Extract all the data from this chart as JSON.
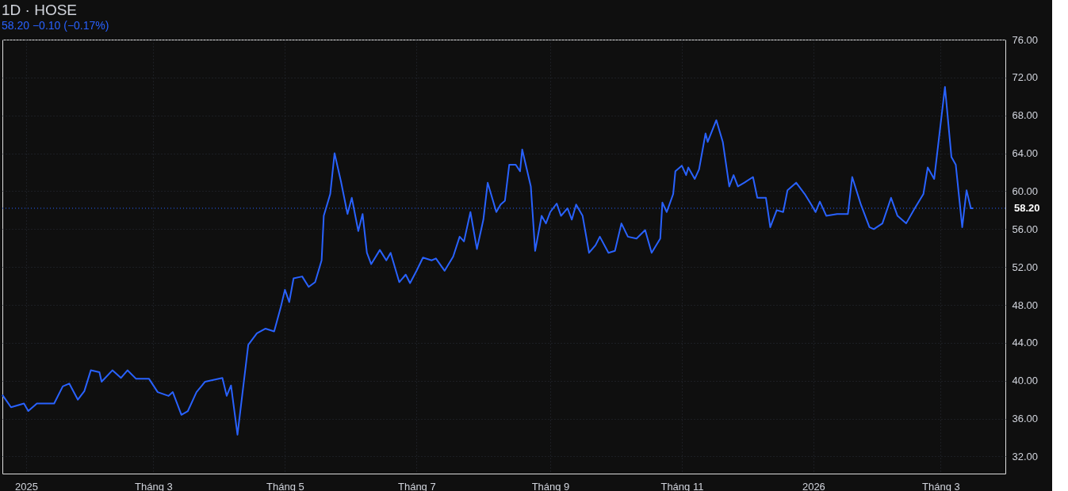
{
  "chart_data": {
    "type": "line",
    "title": "1D · HOSE",
    "subtitle": "58.20 −0.10 (−0.17%)",
    "x": [
      "2024-12-21",
      "2024-12-25",
      "2024-12-31",
      "2025-01-02",
      "2025-01-06",
      "2025-01-14",
      "2025-01-18",
      "2025-01-21",
      "2025-01-25",
      "2025-01-28",
      "2025-01-31",
      "2025-02-04",
      "2025-02-05",
      "2025-02-10",
      "2025-02-14",
      "2025-02-17",
      "2025-02-21",
      "2025-02-27",
      "2025-03-03",
      "2025-03-08",
      "2025-03-10",
      "2025-03-14",
      "2025-03-17",
      "2025-03-21",
      "2025-03-25",
      "2025-04-02",
      "2025-04-04",
      "2025-04-06",
      "2025-04-09",
      "2025-04-14",
      "2025-04-18",
      "2025-04-22",
      "2025-04-26",
      "2025-04-29",
      "2025-05-01",
      "2025-05-03",
      "2025-05-05",
      "2025-05-09",
      "2025-05-12",
      "2025-05-15",
      "2025-05-18",
      "2025-05-19",
      "2025-05-22",
      "2025-05-24",
      "2025-05-27",
      "2025-05-30",
      "2025-06-01",
      "2025-06-04",
      "2025-06-06",
      "2025-06-08",
      "2025-06-10",
      "2025-06-14",
      "2025-06-17",
      "2025-06-19",
      "2025-06-23",
      "2025-06-26",
      "2025-06-28",
      "2025-07-01",
      "2025-07-04",
      "2025-07-08",
      "2025-07-10",
      "2025-07-14",
      "2025-07-18",
      "2025-07-21",
      "2025-07-23",
      "2025-07-26",
      "2025-07-29",
      "2025-08-01",
      "2025-08-03",
      "2025-08-07",
      "2025-08-09",
      "2025-08-11",
      "2025-08-13",
      "2025-08-16",
      "2025-08-18",
      "2025-08-19",
      "2025-08-23",
      "2025-08-25",
      "2025-08-28",
      "2025-08-30",
      "2025-09-01",
      "2025-09-04",
      "2025-09-06",
      "2025-09-09",
      "2025-09-11",
      "2025-09-13",
      "2025-09-16",
      "2025-09-19",
      "2025-09-22",
      "2025-09-24",
      "2025-09-28",
      "2025-10-01",
      "2025-10-04",
      "2025-10-07",
      "2025-10-11",
      "2025-10-15",
      "2025-10-18",
      "2025-10-22",
      "2025-10-23",
      "2025-10-25",
      "2025-10-28",
      "2025-10-29",
      "2025-11-01",
      "2025-11-03",
      "2025-11-04",
      "2025-11-07",
      "2025-11-09",
      "2025-11-12",
      "2025-11-13",
      "2025-11-17",
      "2025-11-20",
      "2025-11-23",
      "2025-11-25",
      "2025-11-27",
      "2025-11-30",
      "2025-12-04",
      "2025-12-06",
      "2025-12-10",
      "2025-12-12",
      "2025-12-15",
      "2025-12-18",
      "2025-12-20",
      "2025-12-24",
      "2025-12-28",
      "2025-12-31",
      "2026-01-02",
      "2026-01-04",
      "2026-01-07",
      "2026-01-12",
      "2026-01-17",
      "2026-01-19",
      "2026-01-23",
      "2026-01-27",
      "2026-01-29",
      "2026-02-02",
      "2026-02-06",
      "2026-02-09",
      "2026-02-13",
      "2026-02-17",
      "2026-02-21",
      "2026-02-23",
      "2026-02-26",
      "2026-03-03",
      "2026-03-06",
      "2026-03-08",
      "2026-03-11",
      "2026-03-13",
      "2026-03-15",
      "2026-03-16"
    ],
    "series": [
      {
        "color": "#2962ff",
        "values": [
          38.5,
          37.2,
          37.6,
          36.8,
          37.6,
          37.6,
          39.4,
          39.7,
          38.0,
          38.9,
          41.1,
          40.9,
          39.9,
          41.1,
          40.3,
          41.1,
          40.2,
          40.2,
          38.8,
          38.4,
          38.8,
          36.4,
          36.8,
          38.8,
          39.9,
          40.3,
          38.4,
          39.5,
          34.3,
          43.8,
          45.0,
          45.5,
          45.2,
          47.7,
          49.6,
          48.3,
          50.8,
          51.0,
          49.9,
          50.4,
          52.7,
          57.4,
          59.7,
          64.0,
          61.0,
          57.6,
          59.3,
          55.8,
          57.6,
          53.5,
          52.3,
          53.8,
          52.7,
          53.5,
          50.4,
          51.2,
          50.3,
          51.6,
          53.0,
          52.7,
          52.9,
          51.6,
          53.1,
          55.2,
          54.7,
          57.8,
          53.9,
          57.0,
          60.9,
          57.8,
          58.6,
          59.0,
          62.8,
          62.8,
          62.1,
          64.4,
          60.5,
          53.7,
          57.4,
          56.6,
          57.8,
          58.7,
          57.4,
          58.2,
          57.0,
          58.6,
          57.4,
          53.5,
          54.3,
          55.2,
          53.5,
          53.7,
          56.6,
          55.2,
          55.0,
          55.9,
          53.5,
          55.0,
          58.8,
          57.8,
          59.7,
          62.1,
          62.7,
          61.7,
          62.5,
          61.3,
          62.3,
          66.1,
          65.2,
          67.5,
          65.2,
          60.5,
          61.7,
          60.5,
          60.9,
          61.5,
          59.3,
          59.3,
          56.2,
          58.0,
          57.8,
          60.1,
          60.9,
          59.7,
          58.6,
          57.8,
          58.9,
          57.4,
          57.6,
          57.6,
          61.5,
          58.6,
          56.2,
          56.0,
          56.6,
          59.3,
          57.4,
          56.6,
          58.2,
          59.7,
          62.5,
          61.3,
          71.0,
          63.6,
          62.8,
          56.2,
          60.1,
          58.2,
          58.2
        ]
      }
    ],
    "xlim": [
      "2024-12-21",
      "2026-03-31"
    ],
    "xticks": [
      {
        "value": "2025-01-01",
        "label": "2025"
      },
      {
        "value": "2025-03-01",
        "label": "Tháng 3"
      },
      {
        "value": "2025-05-01",
        "label": "Tháng 5"
      },
      {
        "value": "2025-07-01",
        "label": "Tháng 7"
      },
      {
        "value": "2025-09-01",
        "label": "Tháng 9"
      },
      {
        "value": "2025-11-01",
        "label": "Tháng 11"
      },
      {
        "value": "2026-01-01",
        "label": "2026"
      },
      {
        "value": "2026-03-01",
        "label": "Tháng 3"
      }
    ],
    "ylim": [
      30.2,
      76
    ],
    "yticks": [
      {
        "value": 32,
        "label": "32.00"
      },
      {
        "value": 36,
        "label": "36.00"
      },
      {
        "value": 40,
        "label": "40.00"
      },
      {
        "value": 44,
        "label": "44.00"
      },
      {
        "value": 48,
        "label": "48.00"
      },
      {
        "value": 52,
        "label": "52.00"
      },
      {
        "value": 56,
        "label": "56.00"
      },
      {
        "value": 60,
        "label": "60.00"
      },
      {
        "value": 64,
        "label": "64.00"
      },
      {
        "value": 68,
        "label": "68.00"
      },
      {
        "value": 72,
        "label": "72.00"
      },
      {
        "value": 76,
        "label": "76.00"
      }
    ],
    "ref_lines": [
      {
        "axis": "y",
        "value": 58.2,
        "label": "58.20",
        "color": "#2962ff",
        "line_style": "dotted"
      }
    ],
    "grid": true,
    "marker": "none",
    "line_style": "solid"
  }
}
